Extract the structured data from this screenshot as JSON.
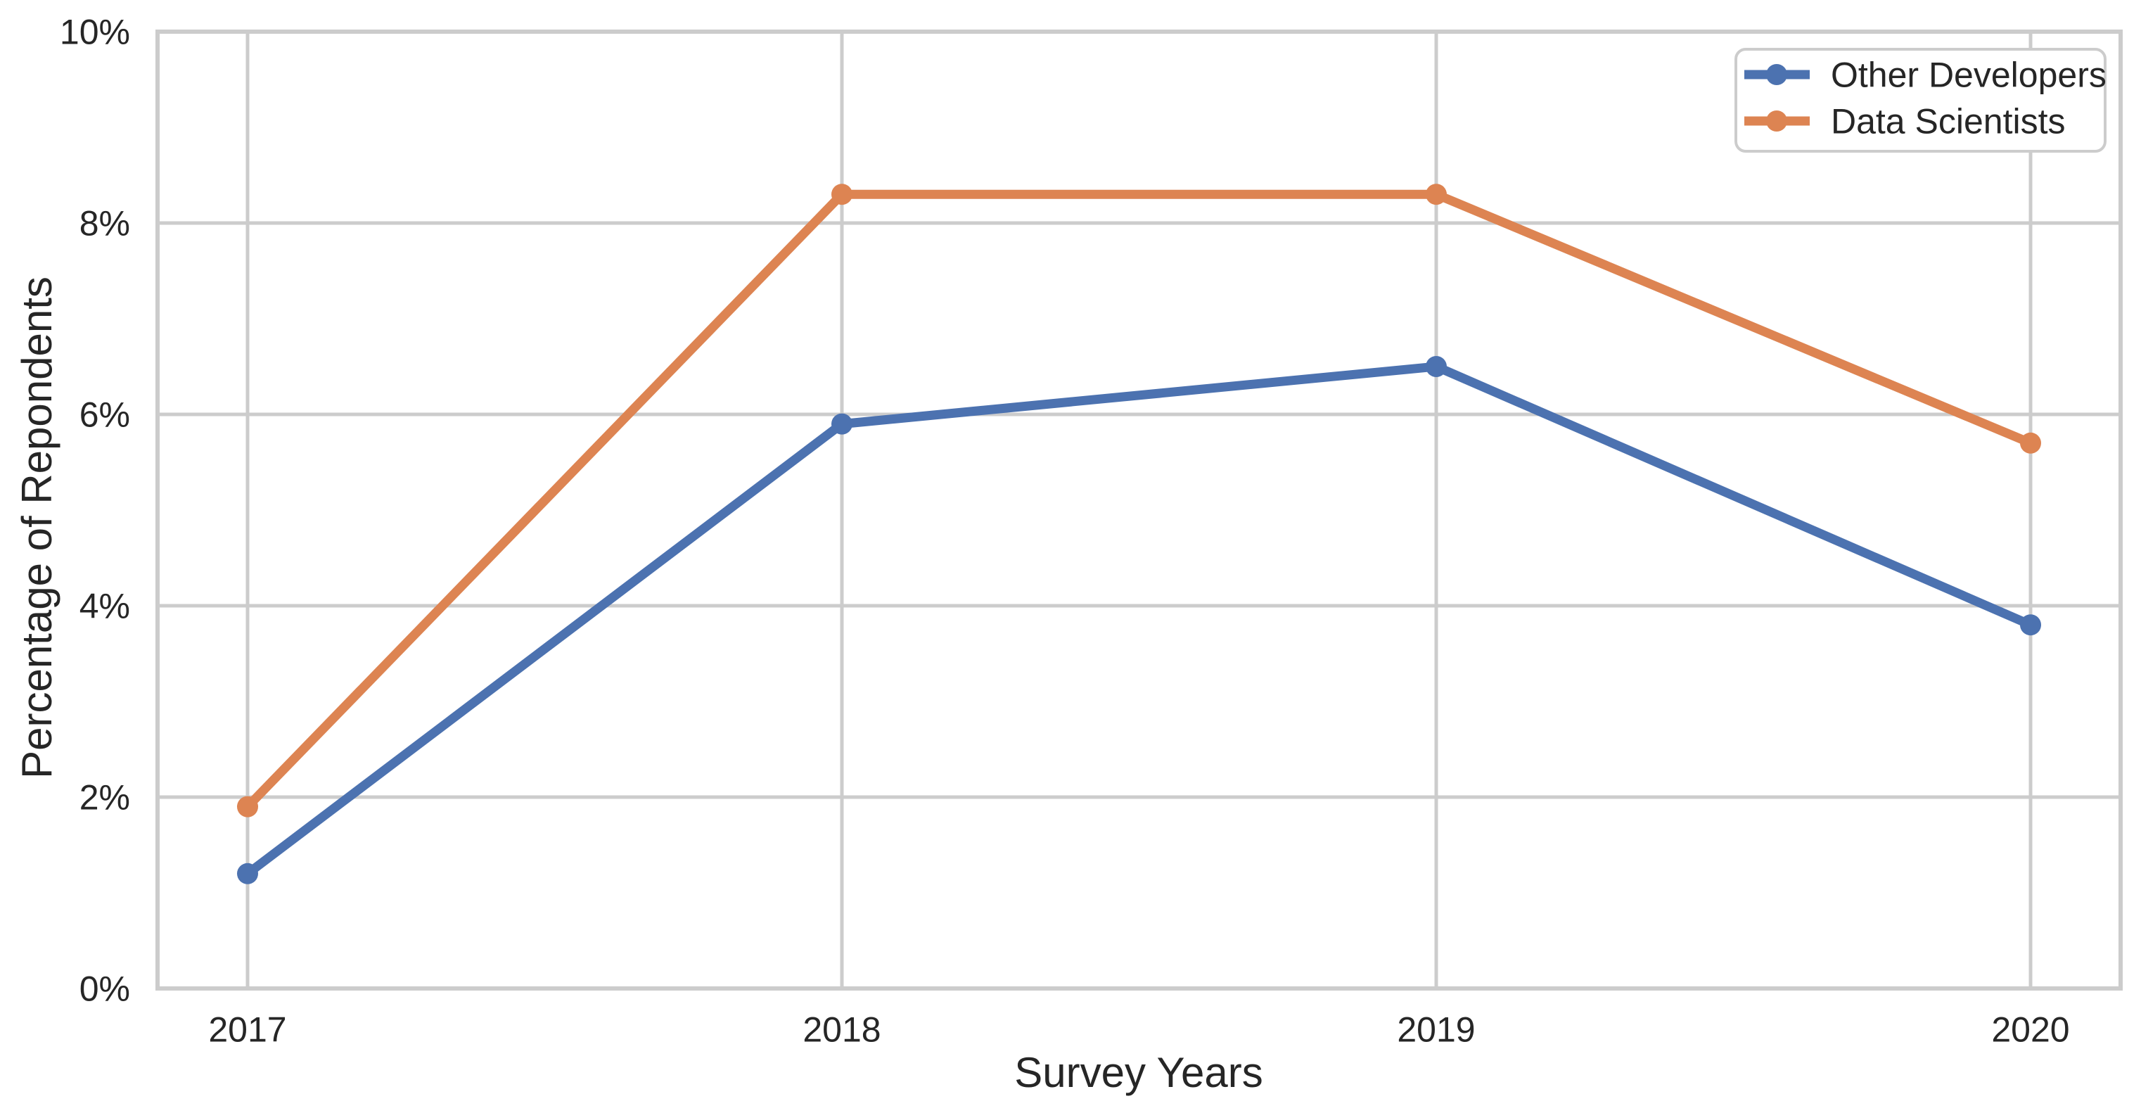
{
  "figure": {
    "background_color": "#ffffff",
    "text_color": "#262626",
    "grid_color": "#cccccc",
    "legend_border_color": "#cccccc"
  },
  "chart_data": {
    "type": "line",
    "title": "",
    "xlabel": "Survey Years",
    "ylabel": "Percentage of Repondents",
    "categories": [
      "2017",
      "2018",
      "2019",
      "2020"
    ],
    "series": [
      {
        "name": "Other Developers",
        "color": "#4C72B0",
        "values": [
          1.2,
          5.9,
          6.5,
          3.8
        ]
      },
      {
        "name": "Data Scientists",
        "color": "#DD8452",
        "values": [
          1.9,
          8.3,
          8.3,
          5.7
        ]
      }
    ],
    "y_ticks": [
      {
        "value": 0,
        "label": "0%"
      },
      {
        "value": 2,
        "label": "2%"
      },
      {
        "value": 4,
        "label": "4%"
      },
      {
        "value": 6,
        "label": "6%"
      },
      {
        "value": 8,
        "label": "8%"
      },
      {
        "value": 10,
        "label": "10%"
      }
    ],
    "ylim": [
      0,
      10
    ],
    "grid": true,
    "marker": "circle",
    "legend_position": "upper right"
  }
}
